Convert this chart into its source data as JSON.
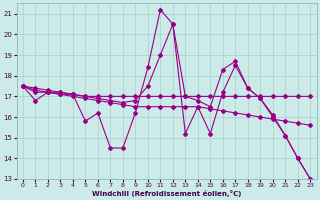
{
  "xlabel": "Windchill (Refroidissement éolien,°C)",
  "bg_color": "#cceae8",
  "line_color": "#990088",
  "grid_color": "#aad4d0",
  "xlim": [
    -0.5,
    23.5
  ],
  "ylim": [
    13,
    21.5
  ],
  "xticks": [
    0,
    1,
    2,
    3,
    4,
    5,
    6,
    7,
    8,
    9,
    10,
    11,
    12,
    13,
    14,
    15,
    16,
    17,
    18,
    19,
    20,
    21,
    22,
    23
  ],
  "yticks": [
    13,
    14,
    15,
    16,
    17,
    18,
    19,
    20,
    21
  ],
  "lines": [
    {
      "x": [
        0,
        1,
        2,
        3,
        4,
        5,
        6,
        7,
        8,
        9,
        10,
        11,
        12,
        13,
        14,
        15,
        16,
        17,
        18,
        19,
        20,
        21,
        22,
        23
      ],
      "y": [
        17.5,
        16.8,
        17.2,
        17.1,
        17.1,
        15.8,
        16.2,
        14.5,
        14.5,
        16.2,
        18.4,
        21.2,
        20.5,
        15.2,
        16.5,
        15.2,
        17.2,
        18.5,
        17.4,
        16.9,
        16.0,
        15.1,
        14.0,
        13.0
      ]
    },
    {
      "x": [
        0,
        1,
        2,
        3,
        4,
        5,
        6,
        7,
        8,
        9,
        10,
        11,
        12,
        13,
        14,
        15,
        16,
        17,
        18,
        19,
        20,
        21,
        22,
        23
      ],
      "y": [
        17.5,
        17.2,
        17.2,
        17.2,
        17.1,
        17.0,
        16.9,
        16.8,
        16.7,
        16.8,
        17.5,
        19.0,
        20.5,
        17.0,
        16.8,
        16.5,
        18.3,
        18.7,
        17.4,
        16.9,
        16.1,
        15.1,
        14.0,
        13.0
      ]
    },
    {
      "x": [
        0,
        1,
        2,
        3,
        4,
        5,
        6,
        7,
        8,
        9,
        10,
        11,
        12,
        13,
        14,
        15,
        16,
        17,
        18,
        19,
        20,
        21,
        22,
        23
      ],
      "y": [
        17.5,
        17.3,
        17.2,
        17.1,
        17.0,
        16.9,
        16.8,
        16.7,
        16.6,
        16.5,
        16.5,
        16.5,
        16.5,
        16.5,
        16.5,
        16.4,
        16.3,
        16.2,
        16.1,
        16.0,
        15.9,
        15.8,
        15.7,
        15.6
      ]
    },
    {
      "x": [
        0,
        1,
        2,
        3,
        4,
        5,
        6,
        7,
        8,
        9,
        10,
        11,
        12,
        13,
        14,
        15,
        16,
        17,
        18,
        19,
        20,
        21,
        22,
        23
      ],
      "y": [
        17.5,
        17.4,
        17.3,
        17.2,
        17.1,
        17.0,
        17.0,
        17.0,
        17.0,
        17.0,
        17.0,
        17.0,
        17.0,
        17.0,
        17.0,
        17.0,
        17.0,
        17.0,
        17.0,
        17.0,
        17.0,
        17.0,
        17.0,
        17.0
      ]
    }
  ]
}
